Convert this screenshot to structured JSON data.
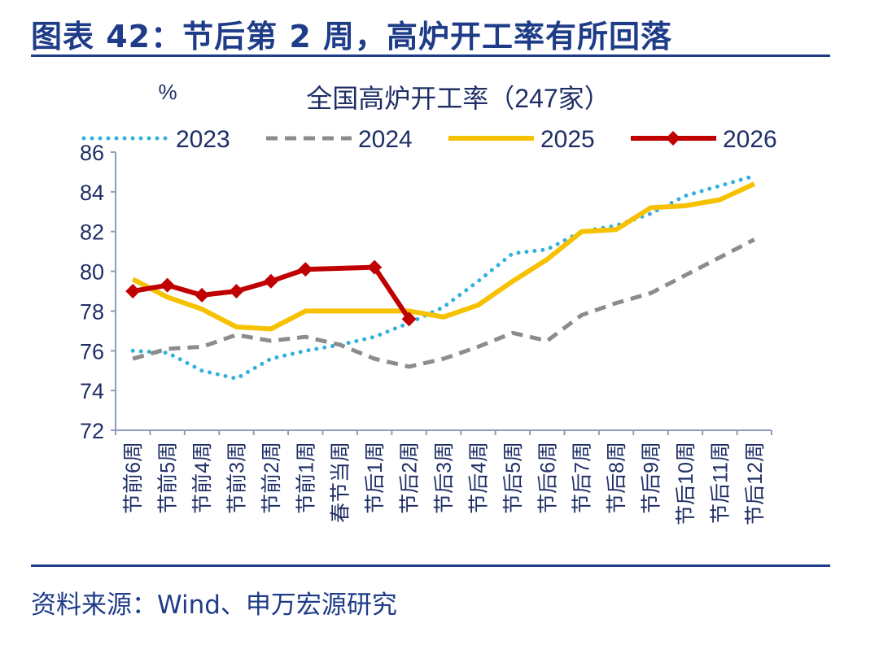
{
  "header": {
    "figure_title": "图表 42：节后第 2 周，高炉开工率有所回落"
  },
  "footer": {
    "source": "资料来源：Wind、申万宏源研究"
  },
  "chart_data": {
    "type": "line",
    "title": "全国高炉开工率（247家）",
    "ylabel": "%",
    "xlabel": "",
    "ylim": [
      72,
      86
    ],
    "yticks": [
      72,
      74,
      76,
      78,
      80,
      82,
      84,
      86
    ],
    "categories": [
      "节前6周",
      "节前5周",
      "节前4周",
      "节前3周",
      "节前2周",
      "节前1周",
      "春节当周",
      "节后1周",
      "节后2周",
      "节后3周",
      "节后4周",
      "节后5周",
      "节后6周",
      "节后7周",
      "节后8周",
      "节后9周",
      "节后10周",
      "节后11周",
      "节后12周"
    ],
    "series": [
      {
        "name": "2023",
        "color": "#33b0de",
        "style": "dotted",
        "values": [
          76.0,
          75.9,
          75.0,
          74.6,
          75.6,
          76.0,
          76.3,
          76.7,
          77.4,
          78.2,
          79.5,
          80.9,
          81.1,
          82.0,
          82.3,
          82.9,
          83.8,
          84.3,
          84.8
        ]
      },
      {
        "name": "2024",
        "color": "#8c8c8c",
        "style": "dashed",
        "values": [
          75.6,
          76.1,
          76.2,
          76.8,
          76.5,
          76.7,
          76.3,
          75.6,
          75.2,
          75.6,
          76.2,
          76.9,
          76.5,
          77.8,
          78.4,
          78.9,
          79.8,
          80.7,
          81.6
        ]
      },
      {
        "name": "2025",
        "color": "#f6c100",
        "style": "solid",
        "values": [
          79.6,
          78.7,
          78.1,
          77.2,
          77.1,
          78.0,
          78.0,
          78.0,
          78.0,
          77.7,
          78.3,
          79.5,
          80.6,
          82.0,
          82.1,
          83.2,
          83.3,
          83.6,
          84.4
        ]
      },
      {
        "name": "2026",
        "color": "#c00000",
        "style": "solid-diamond",
        "values": [
          79.0,
          79.3,
          78.8,
          79.0,
          79.5,
          80.1,
          null,
          80.2,
          77.6,
          null,
          null,
          null,
          null,
          null,
          null,
          null,
          null,
          null,
          null
        ]
      }
    ],
    "legend": "top"
  }
}
